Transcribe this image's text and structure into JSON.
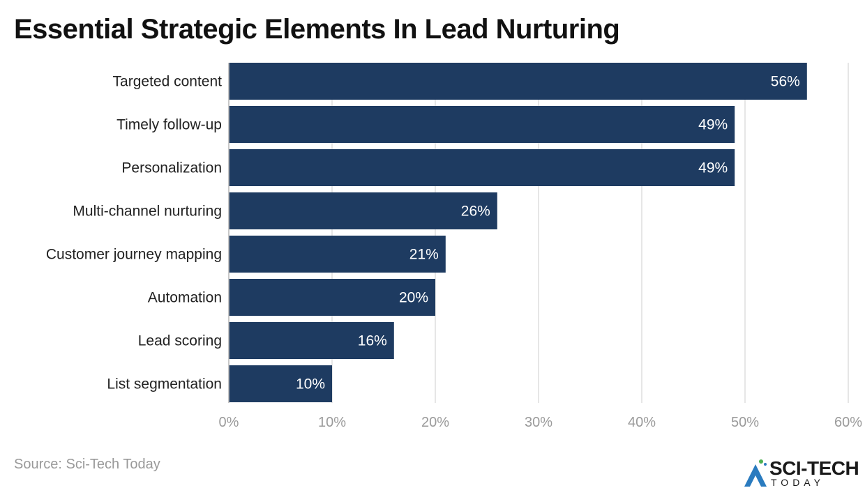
{
  "title": "Essential Strategic Elements In Lead Nurturing",
  "source": "Source: Sci-Tech Today",
  "logo": {
    "main": "SCI-TECH",
    "sub": "TODAY"
  },
  "colors": {
    "bar": "#1e3b61",
    "grid": "#dddddd",
    "tick": "#9a9a9a"
  },
  "chart_data": {
    "type": "bar",
    "orientation": "horizontal",
    "title": "Essential Strategic Elements In Lead Nurturing",
    "categories": [
      "Targeted content",
      "Timely follow-up",
      "Personalization",
      "Multi-channel nurturing",
      "Customer journey mapping",
      "Automation",
      "Lead scoring",
      "List segmentation"
    ],
    "values": [
      56,
      49,
      49,
      26,
      21,
      20,
      16,
      10
    ],
    "labels": [
      "56%",
      "49%",
      "49%",
      "26%",
      "21%",
      "20%",
      "16%",
      "10%"
    ],
    "xlim": [
      0,
      60
    ],
    "xticks": [
      0,
      10,
      20,
      30,
      40,
      50,
      60
    ],
    "xtick_labels": [
      "0%",
      "10%",
      "20%",
      "30%",
      "40%",
      "50%",
      "60%"
    ],
    "grid": true,
    "xlabel": "",
    "ylabel": ""
  }
}
